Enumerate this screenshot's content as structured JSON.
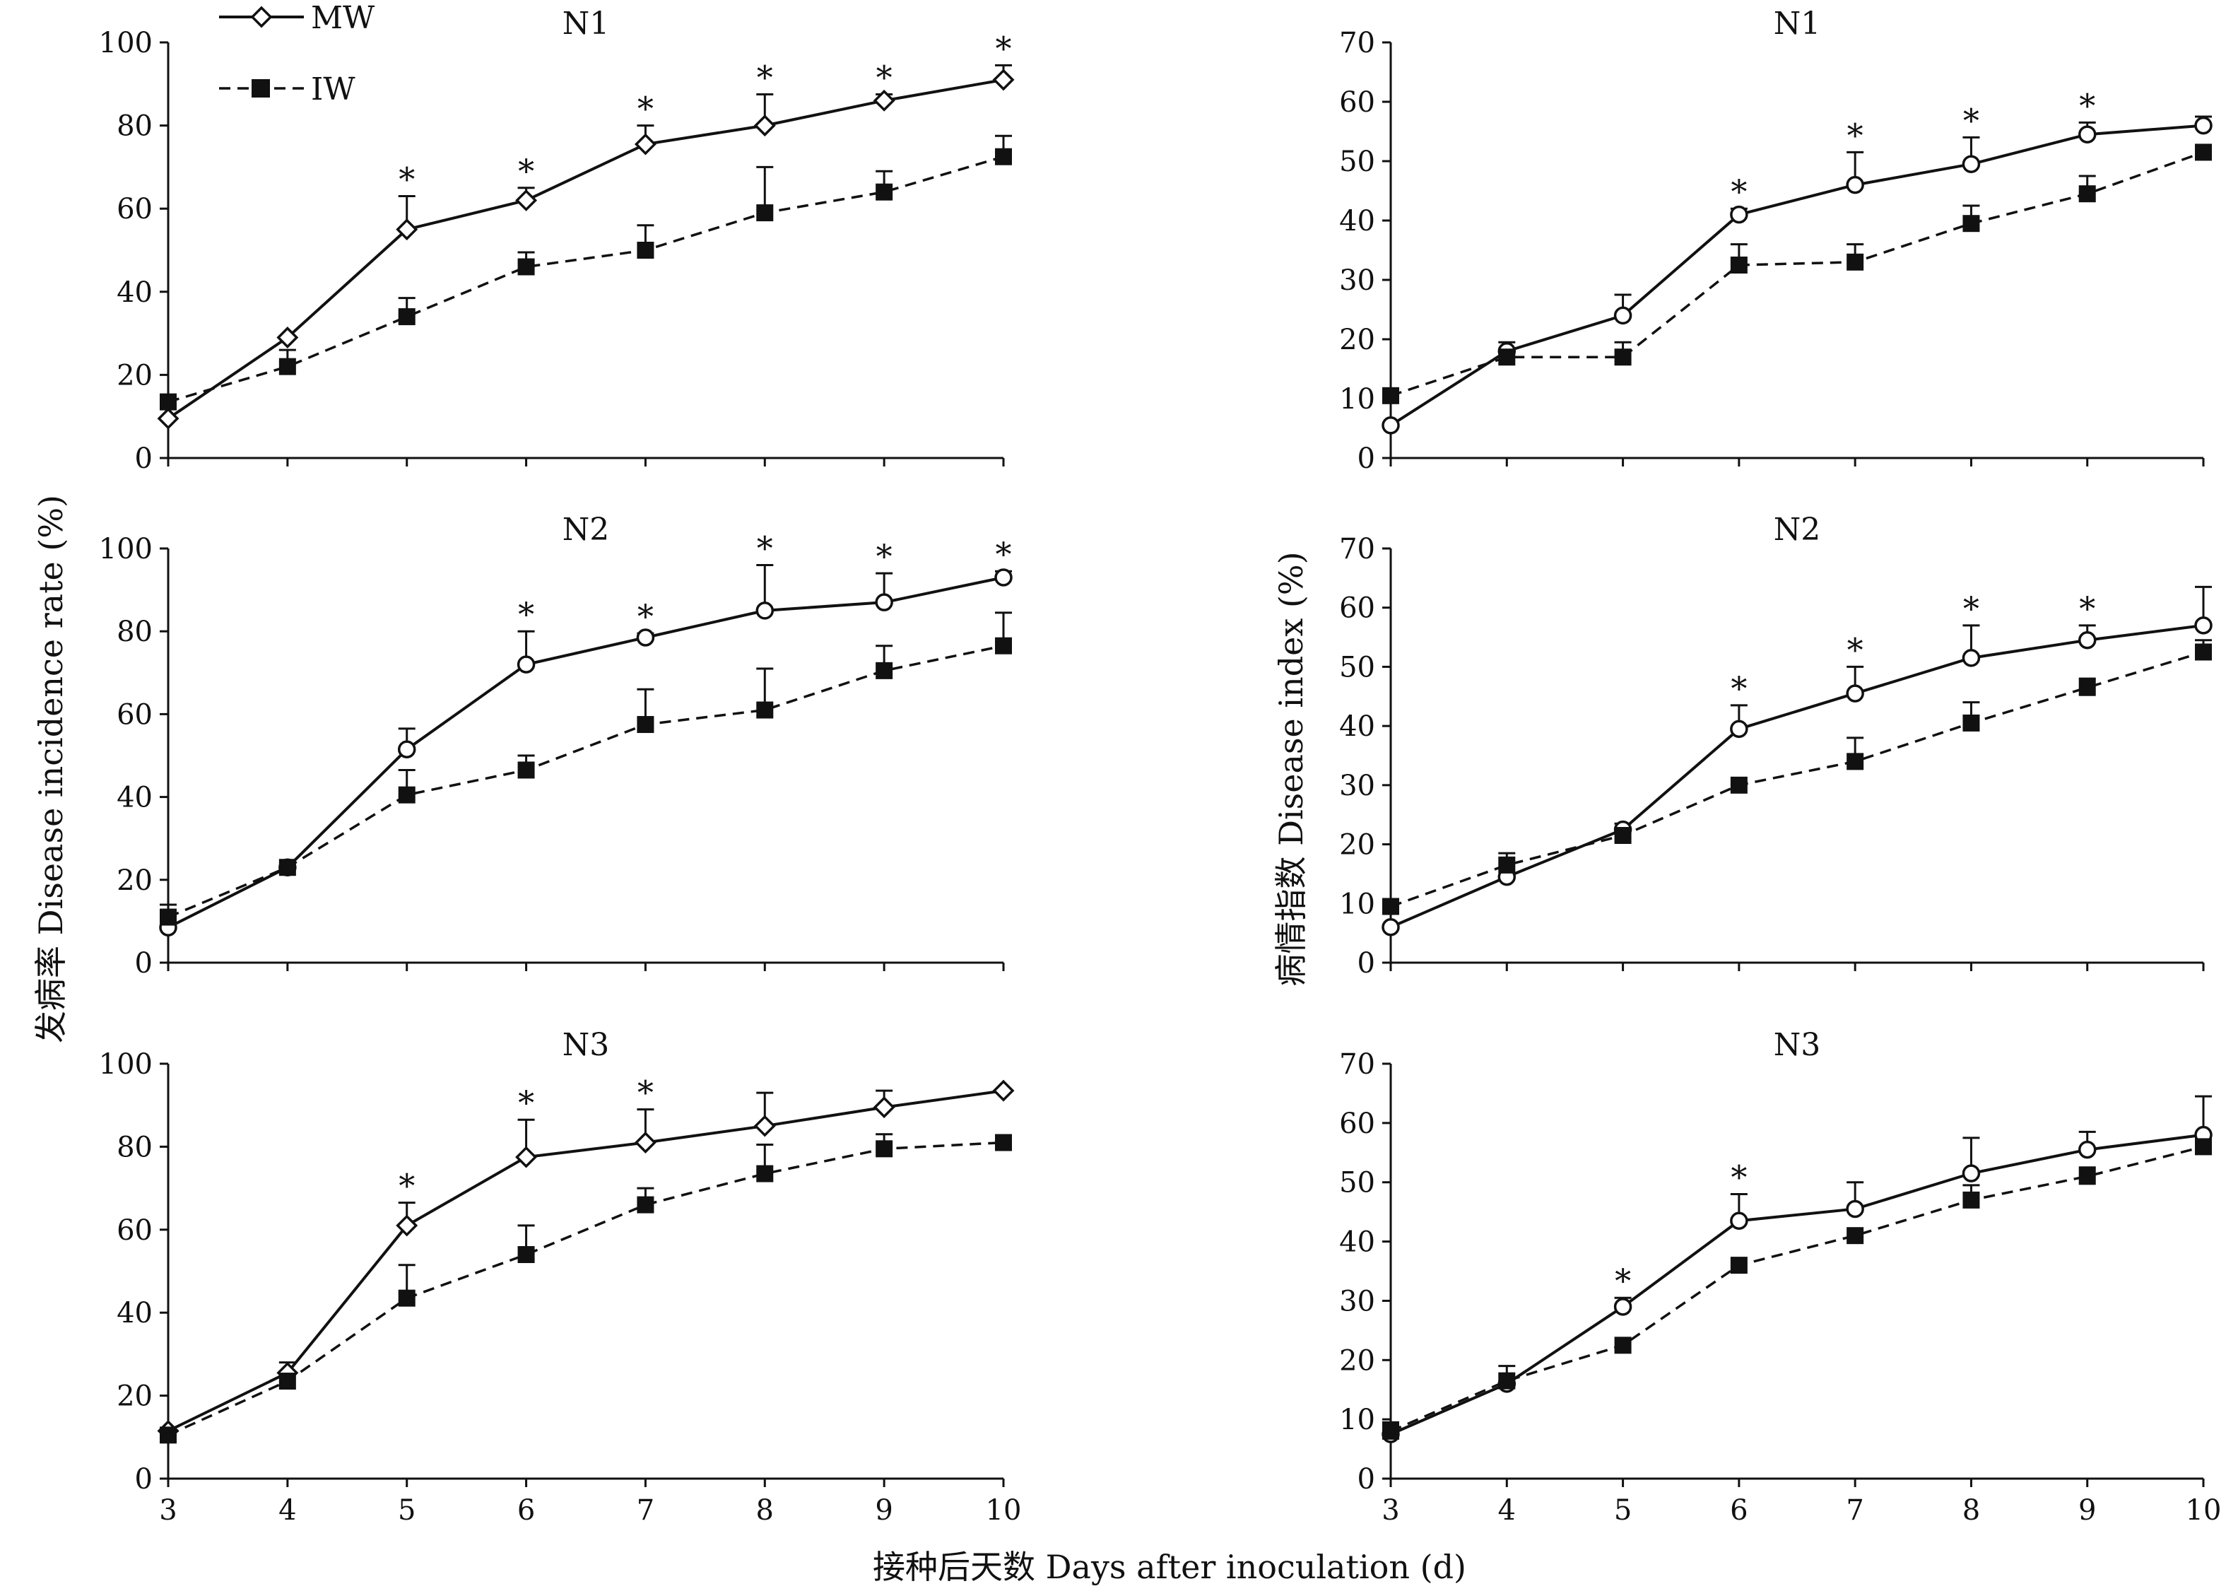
{
  "figure": {
    "xlabel": "接种后天数 Days after inoculation (d)",
    "left_ylabel": "发病率 Disease incidence rate (%)",
    "right_ylabel": "病情指数 Disease index (%)"
  },
  "legend": [
    {
      "label": "MW",
      "style": "solid",
      "marker": "open-diamond"
    },
    {
      "label": "IW",
      "style": "dashed",
      "marker": "filled-square"
    }
  ],
  "chart_data": [
    {
      "type": "line",
      "title": "N1",
      "column": "left",
      "row": 0,
      "x": [
        3,
        4,
        5,
        6,
        7,
        8,
        9,
        10
      ],
      "ylim": [
        0,
        100
      ],
      "yticks": [
        0,
        20,
        40,
        60,
        80,
        100
      ],
      "show_x_ticklabels": false,
      "series": [
        {
          "name": "MW",
          "marker": "diamond",
          "values": [
            9.5,
            29,
            55,
            62,
            75.5,
            80,
            86,
            91
          ],
          "errors": [
            0,
            0,
            8,
            3,
            4.5,
            7.5,
            1.5,
            3.5
          ]
        },
        {
          "name": "IW",
          "marker": "square",
          "values": [
            13.5,
            22,
            34,
            46,
            50,
            59,
            64,
            72.5
          ],
          "errors": [
            0,
            4,
            4.5,
            3.5,
            6,
            11,
            5,
            5
          ]
        }
      ],
      "significant": [
        5,
        6,
        7,
        8,
        9,
        10
      ]
    },
    {
      "type": "line",
      "title": "N1",
      "column": "right",
      "row": 0,
      "x": [
        3,
        4,
        5,
        6,
        7,
        8,
        9,
        10
      ],
      "ylim": [
        0,
        70
      ],
      "yticks": [
        0,
        10,
        20,
        30,
        40,
        50,
        60,
        70
      ],
      "show_x_ticklabels": false,
      "series": [
        {
          "name": "MW",
          "marker": "circle",
          "values": [
            5.5,
            18,
            24,
            41,
            46,
            49.5,
            54.5,
            56
          ],
          "errors": [
            0,
            1.5,
            3.5,
            1,
            5.5,
            4.5,
            2,
            1.5
          ]
        },
        {
          "name": "IW",
          "marker": "square",
          "values": [
            10.5,
            17,
            17,
            32.5,
            33,
            39.5,
            44.5,
            51.5
          ],
          "errors": [
            0,
            0,
            2.5,
            3.5,
            3,
            3,
            3,
            0
          ]
        }
      ],
      "significant": [
        6,
        7,
        8,
        9
      ]
    },
    {
      "type": "line",
      "title": "N2",
      "column": "left",
      "row": 1,
      "x": [
        3,
        4,
        5,
        6,
        7,
        8,
        9,
        10
      ],
      "ylim": [
        0,
        100
      ],
      "yticks": [
        0,
        20,
        40,
        60,
        80,
        100
      ],
      "show_x_ticklabels": false,
      "series": [
        {
          "name": "MW",
          "marker": "circle",
          "values": [
            8.5,
            23,
            51.5,
            72,
            78.5,
            85,
            87,
            93
          ],
          "errors": [
            0,
            0,
            5,
            8,
            1,
            11,
            7,
            1.5
          ]
        },
        {
          "name": "IW",
          "marker": "square",
          "values": [
            11,
            23,
            40.5,
            46.5,
            57.5,
            61,
            70.5,
            76.5
          ],
          "errors": [
            3,
            0,
            6,
            3.5,
            8.5,
            10,
            6,
            8
          ]
        }
      ],
      "significant": [
        6,
        7,
        8,
        9,
        10
      ]
    },
    {
      "type": "line",
      "title": "N2",
      "column": "right",
      "row": 1,
      "x": [
        3,
        4,
        5,
        6,
        7,
        8,
        9,
        10
      ],
      "ylim": [
        0,
        70
      ],
      "yticks": [
        0,
        10,
        20,
        30,
        40,
        50,
        60,
        70
      ],
      "show_x_ticklabels": false,
      "series": [
        {
          "name": "MW",
          "marker": "circle",
          "values": [
            6,
            14.5,
            22.5,
            39.5,
            45.5,
            51.5,
            54.5,
            57
          ],
          "errors": [
            0,
            0,
            1,
            4,
            4.5,
            5.5,
            2.5,
            6.5
          ]
        },
        {
          "name": "IW",
          "marker": "square",
          "values": [
            9.5,
            16.5,
            21.5,
            30,
            34,
            40.5,
            46.5,
            52.5
          ],
          "errors": [
            1,
            2,
            0,
            0,
            4,
            3.5,
            1.5,
            2
          ]
        }
      ],
      "significant": [
        6,
        7,
        8,
        9
      ]
    },
    {
      "type": "line",
      "title": "N3",
      "column": "left",
      "row": 2,
      "x": [
        3,
        4,
        5,
        6,
        7,
        8,
        9,
        10
      ],
      "ylim": [
        0,
        100
      ],
      "yticks": [
        0,
        20,
        40,
        60,
        80,
        100
      ],
      "show_x_ticklabels": true,
      "series": [
        {
          "name": "MW",
          "marker": "diamond",
          "values": [
            11.5,
            25.5,
            61,
            77.5,
            81,
            85,
            89.5,
            93.5
          ],
          "errors": [
            0,
            2.5,
            5.5,
            9,
            8,
            8,
            4,
            0
          ]
        },
        {
          "name": "IW",
          "marker": "square",
          "values": [
            10.5,
            23.5,
            43.5,
            54,
            66,
            73.5,
            79.5,
            81
          ],
          "errors": [
            1.5,
            0,
            8,
            7,
            4,
            7,
            3.5,
            0
          ]
        }
      ],
      "significant": [
        5,
        6,
        7
      ]
    },
    {
      "type": "line",
      "title": "N3",
      "column": "right",
      "row": 2,
      "x": [
        3,
        4,
        5,
        6,
        7,
        8,
        9,
        10
      ],
      "ylim": [
        0,
        70
      ],
      "yticks": [
        0,
        10,
        20,
        30,
        40,
        50,
        60,
        70
      ],
      "show_x_ticklabels": true,
      "series": [
        {
          "name": "MW",
          "marker": "circle",
          "values": [
            7.5,
            16,
            29,
            43.5,
            45.5,
            51.5,
            55.5,
            58
          ],
          "errors": [
            0,
            3,
            1.5,
            4.5,
            4.5,
            6,
            3,
            6.5
          ]
        },
        {
          "name": "IW",
          "marker": "square",
          "values": [
            8,
            16.5,
            22.5,
            36,
            41,
            47,
            51,
            56
          ],
          "errors": [
            1.5,
            0,
            0,
            0,
            0,
            2.5,
            1.5,
            0
          ]
        }
      ],
      "significant": [
        5,
        6
      ]
    }
  ]
}
